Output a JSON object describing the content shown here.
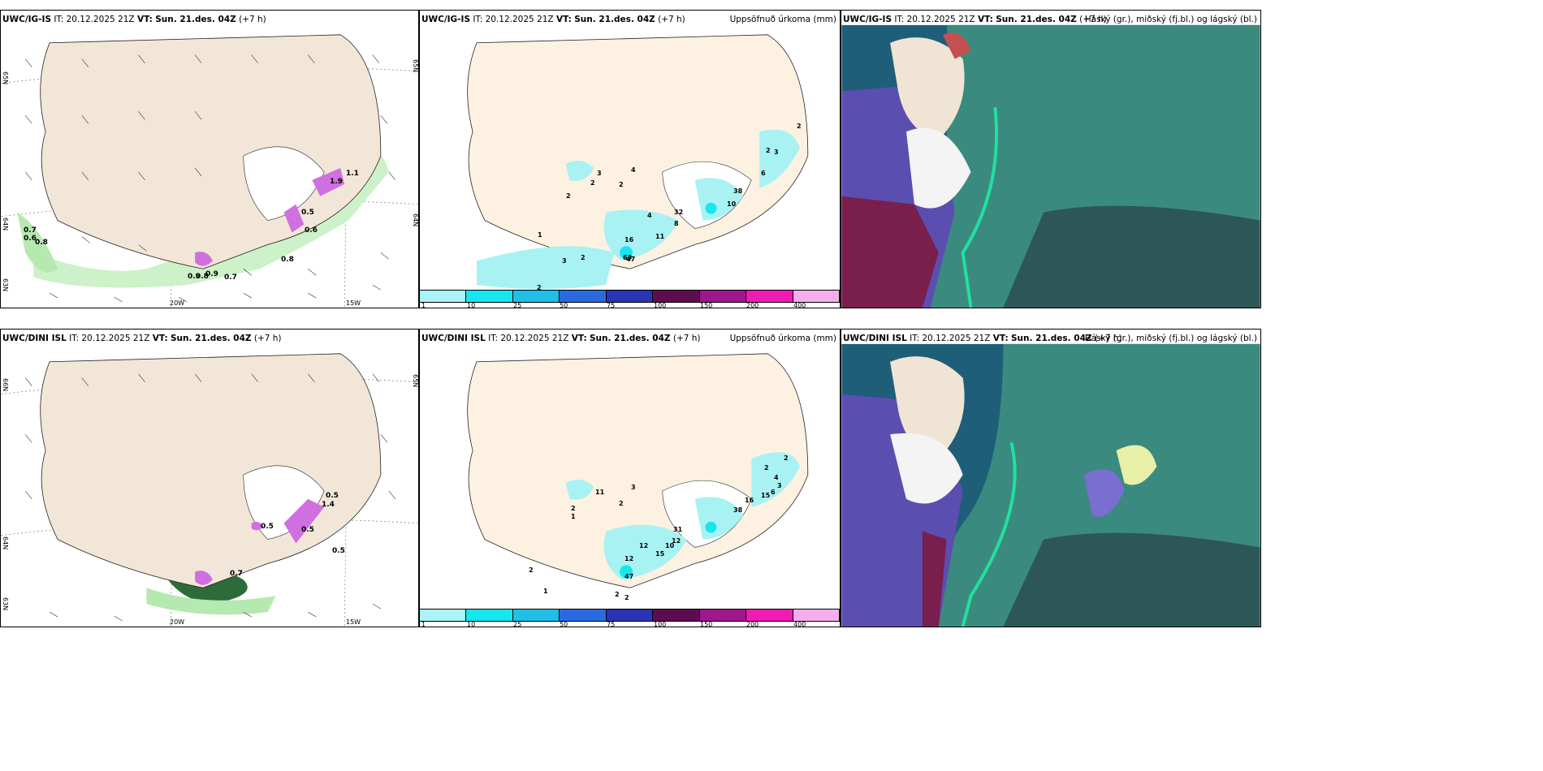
{
  "rows": [
    {
      "model": "UWC/IG-IS",
      "it_label": "IT:",
      "it_value": "20.12.2025 21Z",
      "vt_label": "VT:",
      "vt_value": "Sun. 21.des. 04Z",
      "lead": "(+7 h)",
      "wind_values": [
        "0.7",
        "0.6",
        "0.8",
        "0.9",
        "0.9",
        "0.8",
        "0.7",
        "0.8",
        "0.5",
        "0.6",
        "1.1",
        "1.9"
      ],
      "precip_values": [
        "47",
        "2",
        "4",
        "2",
        "3",
        "1",
        "3",
        "2",
        "2",
        "4",
        "11",
        "8",
        "32",
        "16",
        "63",
        "38",
        "10",
        "2",
        "3",
        "6",
        "2",
        "2"
      ],
      "lon_labels": [
        "20W",
        "15W"
      ],
      "lat_labels": [
        "65N",
        "64N",
        "63N",
        "65N",
        "64N"
      ]
    },
    {
      "model": "UWC/DINI ISL",
      "it_label": "IT:",
      "it_value": "20.12.2025 21Z",
      "vt_label": "VT:",
      "vt_value": "Sun. 21.des. 04Z",
      "lead": "(+7 h)",
      "wind_values": [
        "0.5",
        "0.5",
        "0.5",
        "0.7",
        "0.5",
        "1.4"
      ],
      "precip_values": [
        "11",
        "3",
        "2",
        "2",
        "1",
        "2",
        "1",
        "12",
        "12",
        "10",
        "31",
        "15",
        "12",
        "47",
        "2",
        "2",
        "38",
        "16",
        "15",
        "4",
        "2",
        "2",
        "6",
        "3"
      ],
      "lon_labels": [
        "20W",
        "15W"
      ],
      "lat_labels": [
        "66N",
        "64N",
        "63N",
        "65N"
      ]
    }
  ],
  "precip_title": "Uppsöfnuð úrkoma (mm)",
  "cloud_title": "Háský (gr.), miðský (fj.bl.) og lágský (bl.)",
  "scale": {
    "ticks": [
      "1",
      "10",
      "25",
      "50",
      "75",
      "100",
      "150",
      "200",
      "400"
    ],
    "colors": [
      "#aaf3f6",
      "#17e6ee",
      "#1fbfe8",
      "#2a6ae0",
      "#2a34b4",
      "#5e0c52",
      "#a0168c",
      "#f01ab4",
      "#f4aeee"
    ]
  },
  "colors": {
    "land": "#f2e6d8",
    "precip_land": "#fdf1e2",
    "wind_green": "#9fe39a",
    "precip_cyan": "#a8f2f3",
    "cloud_high": "#3a4e8a",
    "cloud_mid": "#5b6fd0",
    "cloud_low": "#1e6f7a"
  }
}
